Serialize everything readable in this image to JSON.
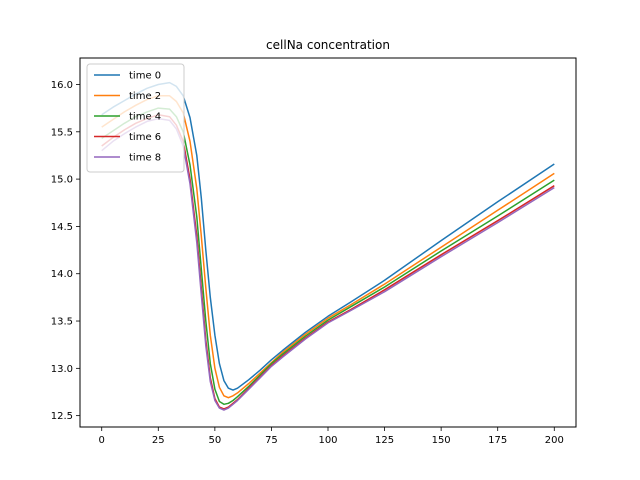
{
  "chart_data": {
    "type": "line",
    "title": "cellNa concentration",
    "xlabel": "",
    "ylabel": "",
    "xlim": [
      -9.6,
      209.6
    ],
    "ylim": [
      12.38,
      16.28
    ],
    "xticks": [
      0,
      25,
      50,
      75,
      100,
      125,
      150,
      175,
      200
    ],
    "yticks": [
      12.5,
      13.0,
      13.5,
      14.0,
      14.5,
      15.0,
      15.5,
      16.0
    ],
    "ytick_labels": [
      "12.5",
      "13.0",
      "13.5",
      "14.0",
      "14.5",
      "15.0",
      "15.5",
      "16.0"
    ],
    "grid": false,
    "legend_position": "upper-left",
    "series": [
      {
        "name": "time 0",
        "color": "#1f77b4",
        "points": [
          [
            0,
            15.68
          ],
          [
            5,
            15.76
          ],
          [
            10,
            15.83
          ],
          [
            15,
            15.9
          ],
          [
            20,
            15.96
          ],
          [
            25,
            16.0
          ],
          [
            30,
            16.02
          ],
          [
            33,
            15.98
          ],
          [
            36,
            15.88
          ],
          [
            39,
            15.65
          ],
          [
            42,
            15.25
          ],
          [
            44,
            14.8
          ],
          [
            46,
            14.25
          ],
          [
            48,
            13.75
          ],
          [
            50,
            13.35
          ],
          [
            52,
            13.05
          ],
          [
            54,
            12.87
          ],
          [
            56,
            12.79
          ],
          [
            58,
            12.77
          ],
          [
            60,
            12.79
          ],
          [
            65,
            12.88
          ],
          [
            70,
            12.98
          ],
          [
            75,
            13.09
          ],
          [
            80,
            13.19
          ],
          [
            90,
            13.38
          ],
          [
            100,
            13.55
          ],
          [
            110,
            13.7
          ],
          [
            125,
            13.93
          ],
          [
            150,
            14.35
          ],
          [
            175,
            14.76
          ],
          [
            200,
            15.16
          ]
        ]
      },
      {
        "name": "time 2",
        "color": "#ff7f0e",
        "points": [
          [
            0,
            15.55
          ],
          [
            5,
            15.63
          ],
          [
            10,
            15.71
          ],
          [
            15,
            15.78
          ],
          [
            20,
            15.84
          ],
          [
            25,
            15.88
          ],
          [
            30,
            15.88
          ],
          [
            33,
            15.82
          ],
          [
            36,
            15.7
          ],
          [
            39,
            15.4
          ],
          [
            42,
            14.9
          ],
          [
            44,
            14.4
          ],
          [
            46,
            13.85
          ],
          [
            48,
            13.35
          ],
          [
            50,
            13.0
          ],
          [
            52,
            12.8
          ],
          [
            54,
            12.71
          ],
          [
            56,
            12.69
          ],
          [
            58,
            12.71
          ],
          [
            60,
            12.74
          ],
          [
            65,
            12.84
          ],
          [
            70,
            12.95
          ],
          [
            75,
            13.06
          ],
          [
            80,
            13.17
          ],
          [
            90,
            13.36
          ],
          [
            100,
            13.53
          ],
          [
            110,
            13.67
          ],
          [
            125,
            13.89
          ],
          [
            150,
            14.28
          ],
          [
            175,
            14.67
          ],
          [
            200,
            15.06
          ]
        ]
      },
      {
        "name": "time 4",
        "color": "#2ca02c",
        "points": [
          [
            0,
            15.43
          ],
          [
            5,
            15.51
          ],
          [
            10,
            15.59
          ],
          [
            15,
            15.66
          ],
          [
            20,
            15.71
          ],
          [
            25,
            15.75
          ],
          [
            30,
            15.74
          ],
          [
            33,
            15.66
          ],
          [
            36,
            15.5
          ],
          [
            39,
            15.15
          ],
          [
            42,
            14.6
          ],
          [
            44,
            14.05
          ],
          [
            46,
            13.5
          ],
          [
            48,
            13.05
          ],
          [
            50,
            12.78
          ],
          [
            52,
            12.65
          ],
          [
            54,
            12.62
          ],
          [
            56,
            12.63
          ],
          [
            58,
            12.66
          ],
          [
            60,
            12.7
          ],
          [
            65,
            12.81
          ],
          [
            70,
            12.93
          ],
          [
            75,
            13.05
          ],
          [
            80,
            13.15
          ],
          [
            90,
            13.34
          ],
          [
            100,
            13.51
          ],
          [
            110,
            13.65
          ],
          [
            125,
            13.86
          ],
          [
            150,
            14.24
          ],
          [
            175,
            14.61
          ],
          [
            200,
            14.99
          ]
        ]
      },
      {
        "name": "time 6",
        "color": "#d62728",
        "points": [
          [
            0,
            15.35
          ],
          [
            5,
            15.44
          ],
          [
            10,
            15.52
          ],
          [
            15,
            15.59
          ],
          [
            20,
            15.64
          ],
          [
            25,
            15.68
          ],
          [
            30,
            15.66
          ],
          [
            33,
            15.57
          ],
          [
            36,
            15.4
          ],
          [
            39,
            15.0
          ],
          [
            42,
            14.4
          ],
          [
            44,
            13.85
          ],
          [
            46,
            13.3
          ],
          [
            48,
            12.9
          ],
          [
            50,
            12.68
          ],
          [
            52,
            12.59
          ],
          [
            54,
            12.57
          ],
          [
            56,
            12.59
          ],
          [
            58,
            12.63
          ],
          [
            60,
            12.67
          ],
          [
            65,
            12.79
          ],
          [
            70,
            12.91
          ],
          [
            75,
            13.03
          ],
          [
            80,
            13.13
          ],
          [
            90,
            13.32
          ],
          [
            100,
            13.49
          ],
          [
            110,
            13.62
          ],
          [
            125,
            13.83
          ],
          [
            150,
            14.2
          ],
          [
            175,
            14.56
          ],
          [
            200,
            14.93
          ]
        ]
      },
      {
        "name": "time 8",
        "color": "#9467bd",
        "points": [
          [
            0,
            15.3
          ],
          [
            5,
            15.4
          ],
          [
            10,
            15.48
          ],
          [
            15,
            15.55
          ],
          [
            20,
            15.61
          ],
          [
            25,
            15.64
          ],
          [
            30,
            15.62
          ],
          [
            33,
            15.53
          ],
          [
            36,
            15.35
          ],
          [
            39,
            14.95
          ],
          [
            42,
            14.33
          ],
          [
            44,
            13.78
          ],
          [
            46,
            13.24
          ],
          [
            48,
            12.86
          ],
          [
            50,
            12.66
          ],
          [
            52,
            12.58
          ],
          [
            54,
            12.56
          ],
          [
            56,
            12.58
          ],
          [
            58,
            12.62
          ],
          [
            60,
            12.66
          ],
          [
            65,
            12.78
          ],
          [
            70,
            12.9
          ],
          [
            75,
            13.02
          ],
          [
            80,
            13.12
          ],
          [
            90,
            13.31
          ],
          [
            100,
            13.48
          ],
          [
            110,
            13.61
          ],
          [
            125,
            13.81
          ],
          [
            150,
            14.18
          ],
          [
            175,
            14.54
          ],
          [
            200,
            14.91
          ]
        ]
      }
    ]
  }
}
